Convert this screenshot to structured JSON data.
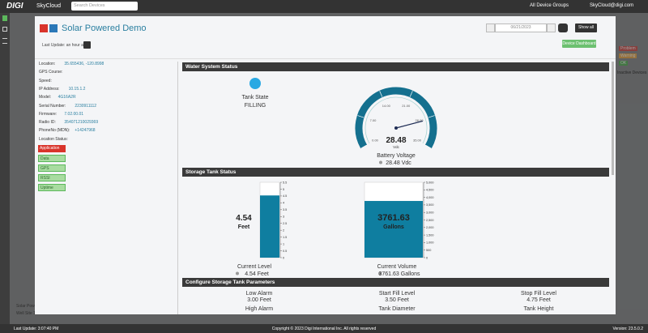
{
  "top_bar": {
    "logo": "DIGI",
    "product": "SkyCloud",
    "search_placeholder": "Search Devices",
    "device_groups": "All Device Groups",
    "user": "SkyCloud@digi.com"
  },
  "background": {
    "legend": [
      "Problem",
      "Warning",
      "OK"
    ],
    "inactive": "Inactive Devices",
    "list": [
      "Solar Powe",
      "Well Site 1"
    ]
  },
  "modal": {
    "title": "Solar Powered Demo",
    "last_update": "Last Update: an hour ago",
    "date": "06/21/2023",
    "show_all": "Show all",
    "dashboard_button": "Device Dashboard",
    "info": [
      {
        "label": "Location:",
        "value": "35.655436, -120.8998"
      },
      {
        "label": "GPS Course:"
      },
      {
        "label": "Speed:"
      },
      {
        "label": "IP Address:",
        "value": "10.15.1.2"
      },
      {
        "label": "Model:",
        "value": "4G16A2R"
      },
      {
        "label": "Serial Number:",
        "value": "2230911112"
      },
      {
        "label": "Firmware:",
        "value": "7.02.00.01"
      },
      {
        "label": "Radio ID:",
        "value": "354071210029369"
      },
      {
        "label": "PhoneNo (MDN):",
        "value": "+14247968"
      },
      {
        "label": "Location Status:"
      }
    ],
    "buttons": [
      {
        "label": "Application",
        "state": "alert"
      },
      {
        "label": "Data",
        "state": "ok"
      },
      {
        "label": "GPS",
        "state": "ok"
      },
      {
        "label": "RSSI",
        "state": "ok"
      },
      {
        "label": "Uptime",
        "state": "ok"
      }
    ],
    "water_status": {
      "title": "Water System Status",
      "tank_state_label": "Tank State",
      "tank_state": "FILLING",
      "gauge": {
        "min": 0,
        "max": 35,
        "ticks": [
          {
            "value": 0,
            "label": "0.00"
          },
          {
            "value": 7,
            "label": "7.00"
          },
          {
            "value": 14,
            "label": "14.00"
          },
          {
            "value": 21,
            "label": "21.00"
          },
          {
            "value": 28,
            "label": "28.00"
          },
          {
            "value": 35,
            "label": "35.00"
          }
        ],
        "value": 28.48,
        "unit": "Vdc",
        "label": "Battery Voltage",
        "reading": "28.48 Vdc"
      }
    },
    "storage": {
      "title": "Storage Tank Status",
      "level": {
        "value": 4.54,
        "unit": "Feet",
        "ylim": [
          0,
          5.5
        ],
        "yticks": [
          0,
          0.5,
          1,
          1.5,
          2,
          2.5,
          3,
          3.5,
          4,
          4.5,
          5,
          5.5
        ],
        "label": "Current Level",
        "reading": "4.54 Feet"
      },
      "volume": {
        "value": 3761.63,
        "unit": "Gallons",
        "ylim": [
          0,
          5000
        ],
        "yticks": [
          0,
          500,
          {
            "value": 1000,
            "label": "1,000"
          },
          {
            "value": 1500,
            "label": "1,500"
          },
          {
            "value": 2000,
            "label": "2,000"
          },
          {
            "value": 2500,
            "label": "2,500"
          },
          {
            "value": 3000,
            "label": "3,000"
          },
          {
            "value": 3500,
            "label": "3,500"
          },
          {
            "value": 4000,
            "label": "4,000"
          },
          {
            "value": 4500,
            "label": "4,500"
          },
          {
            "value": 5000,
            "label": "5,000"
          }
        ],
        "label": "Current Volume",
        "reading": "3761.63 Gallons"
      }
    },
    "config": {
      "title": "Configure Storage Tank Parameters",
      "params": [
        {
          "label": "Low Alarm",
          "value": "3.00 Feet"
        },
        {
          "label": "Start Fill Level",
          "value": "3.50 Feet"
        },
        {
          "label": "Stop Fill Level",
          "value": "4.75 Feet"
        },
        {
          "label": "High Alarm"
        },
        {
          "label": "Tank Diameter"
        },
        {
          "label": "Tank Height"
        }
      ]
    }
  },
  "footer": {
    "last_update": "Last Update: 3:07:40 PM",
    "copyright": "Copyright © 2023 Digi International Inc. All rights reserved",
    "version": "Version: 23.5.0.2"
  }
}
